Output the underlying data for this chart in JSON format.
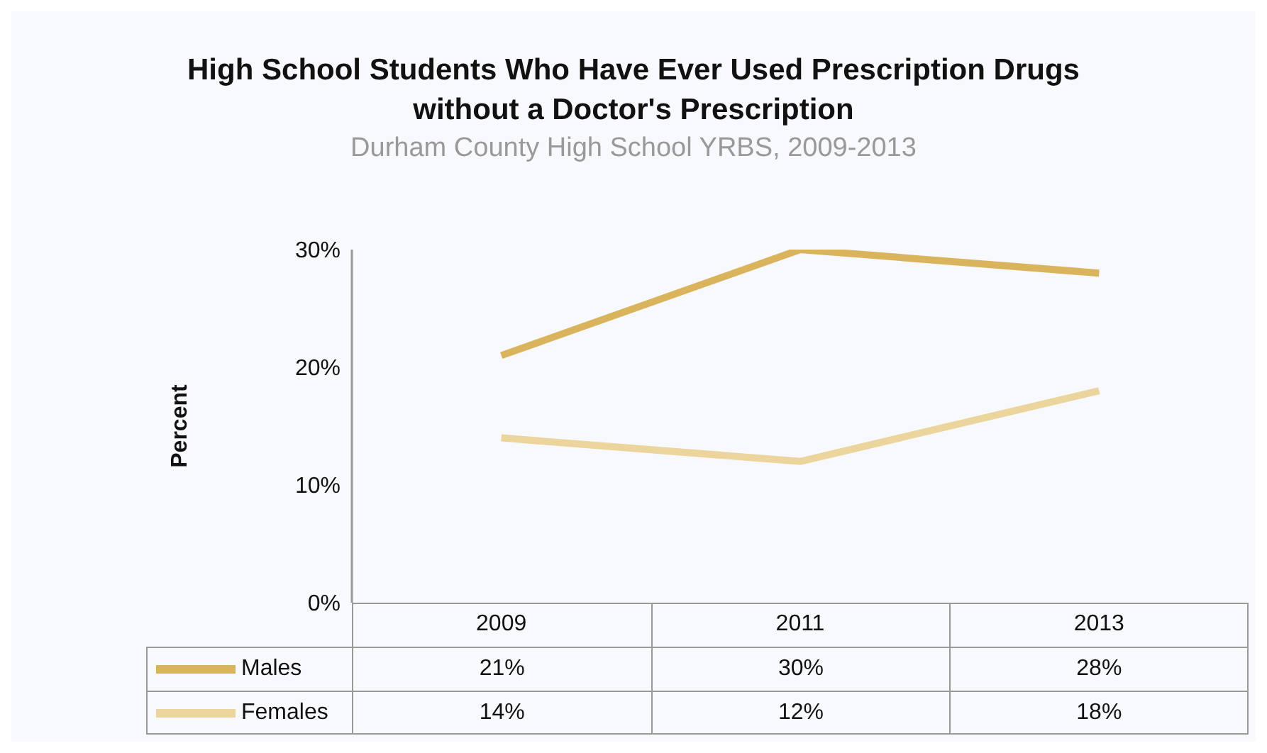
{
  "chart_data": {
    "type": "line",
    "title": "High School Students Who Have Ever Used Prescription Drugs without a Doctor's Prescription",
    "subtitle": "Durham County High School YRBS, 2009-2013",
    "ylabel": "Percent",
    "categories": [
      "2009",
      "2011",
      "2013"
    ],
    "series": [
      {
        "name": "Males",
        "color": "#d9b45c",
        "values": [
          21,
          30,
          28
        ],
        "value_labels": [
          "21%",
          "30%",
          "28%"
        ]
      },
      {
        "name": "Females",
        "color": "#ecd59c",
        "values": [
          14,
          12,
          18
        ],
        "value_labels": [
          "14%",
          "12%",
          "18%"
        ]
      }
    ],
    "ylim": [
      0,
      30
    ],
    "yticks": [
      {
        "value": 0,
        "label": "0%"
      },
      {
        "value": 10,
        "label": "10%"
      },
      {
        "value": 20,
        "label": "20%"
      },
      {
        "value": 30,
        "label": "30%"
      }
    ],
    "grid": false,
    "legend": "bottom",
    "marker": "none",
    "line_style": "solid"
  }
}
